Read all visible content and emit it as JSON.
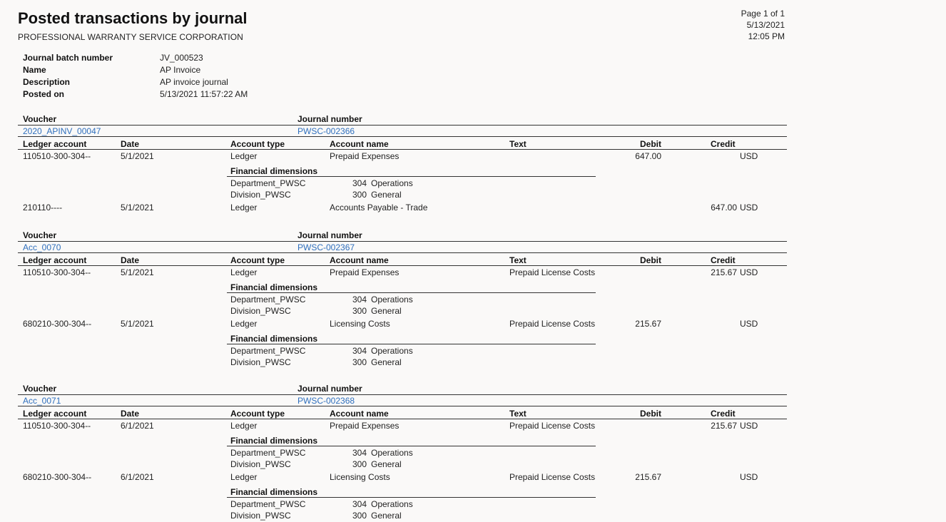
{
  "report": {
    "title": "Posted transactions by journal",
    "company": "PROFESSIONAL WARRANTY SERVICE CORPORATION",
    "page": "Page 1 of 1",
    "date": "5/13/2021",
    "time": "12:05 PM"
  },
  "batch": {
    "labels": {
      "number": "Journal batch number",
      "name": "Name",
      "description": "Description",
      "posted": "Posted on"
    },
    "values": {
      "number": "JV_000523",
      "name": "AP Invoice",
      "description": "AP invoice journal",
      "posted": "5/13/2021 11:57:22 AM"
    }
  },
  "headers": {
    "voucher": "Voucher",
    "journal": "Journal number",
    "ledger": "Ledger account",
    "date": "Date",
    "type": "Account type",
    "name": "Account name",
    "text": "Text",
    "debit": "Debit",
    "credit": "Credit",
    "fin_dims": "Financial dimensions"
  },
  "vouchers": [
    {
      "voucher": "2020_APINV_00047",
      "journal": "PWSC-002366",
      "lines": [
        {
          "ledger": "110510-300-304--",
          "date": "5/1/2021",
          "type": "Ledger",
          "name": "Prepaid Expenses",
          "text": "",
          "debit": "647.00",
          "credit": "",
          "currency": "USD",
          "dims": [
            {
              "name": "Department_PWSC",
              "code": "304",
              "desc": "Operations"
            },
            {
              "name": "Division_PWSC",
              "code": "300",
              "desc": "General"
            }
          ]
        },
        {
          "ledger": "210110----",
          "date": "5/1/2021",
          "type": "Ledger",
          "name": "Accounts Payable - Trade",
          "text": "",
          "debit": "",
          "credit": "647.00",
          "currency": "USD",
          "dims": []
        }
      ]
    },
    {
      "voucher": "Acc_0070",
      "journal": "PWSC-002367",
      "lines": [
        {
          "ledger": "110510-300-304--",
          "date": "5/1/2021",
          "type": "Ledger",
          "name": "Prepaid Expenses",
          "text": "Prepaid License Costs",
          "debit": "",
          "credit": "215.67",
          "currency": "USD",
          "dims": [
            {
              "name": "Department_PWSC",
              "code": "304",
              "desc": "Operations"
            },
            {
              "name": "Division_PWSC",
              "code": "300",
              "desc": "General"
            }
          ]
        },
        {
          "ledger": "680210-300-304--",
          "date": "5/1/2021",
          "type": "Ledger",
          "name": "Licensing Costs",
          "text": "Prepaid License Costs",
          "debit": "215.67",
          "credit": "",
          "currency": "USD",
          "dims": [
            {
              "name": "Department_PWSC",
              "code": "304",
              "desc": "Operations"
            },
            {
              "name": "Division_PWSC",
              "code": "300",
              "desc": "General"
            }
          ]
        }
      ]
    },
    {
      "voucher": "Acc_0071",
      "journal": "PWSC-002368",
      "lines": [
        {
          "ledger": "110510-300-304--",
          "date": "6/1/2021",
          "type": "Ledger",
          "name": "Prepaid Expenses",
          "text": "Prepaid License Costs",
          "debit": "",
          "credit": "215.67",
          "currency": "USD",
          "dims": [
            {
              "name": "Department_PWSC",
              "code": "304",
              "desc": "Operations"
            },
            {
              "name": "Division_PWSC",
              "code": "300",
              "desc": "General"
            }
          ]
        },
        {
          "ledger": "680210-300-304--",
          "date": "6/1/2021",
          "type": "Ledger",
          "name": "Licensing Costs",
          "text": "Prepaid License Costs",
          "debit": "215.67",
          "credit": "",
          "currency": "USD",
          "dims": [
            {
              "name": "Department_PWSC",
              "code": "304",
              "desc": "Operations"
            },
            {
              "name": "Division_PWSC",
              "code": "300",
              "desc": "General"
            }
          ]
        }
      ]
    }
  ]
}
